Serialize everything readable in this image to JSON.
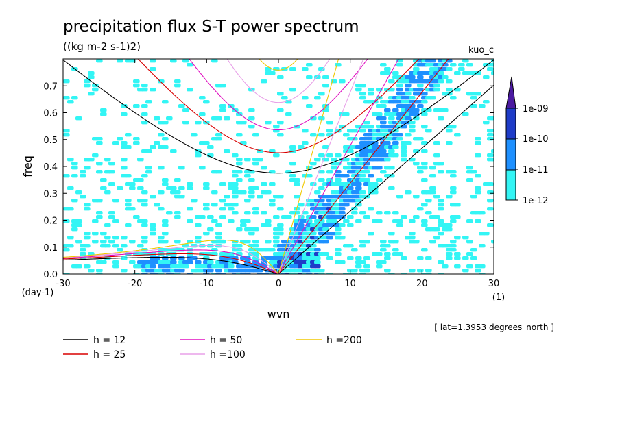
{
  "chart_data": {
    "type": "heatmap",
    "title": "precipitation flux S-T power spectrum",
    "subtitle": "((kg m-2 s-1)2)",
    "tag": "kuo_c",
    "xlabel": "wvn",
    "xunit": "(1)",
    "ylabel": "freq",
    "yunit": "(day-1)",
    "xlim": [
      -30,
      30
    ],
    "ylim": [
      0,
      0.8
    ],
    "x_ticks": [
      -30,
      -20,
      -10,
      0,
      10,
      20,
      30
    ],
    "x_tick_labels": [
      "-30",
      "-20",
      "-10",
      "0",
      "10",
      "20",
      "30"
    ],
    "y_ticks": [
      0,
      0.1,
      0.2,
      0.3,
      0.4,
      0.5,
      0.6,
      0.7
    ],
    "y_tick_labels": [
      "0.0",
      "0.1",
      "0.2",
      "0.3",
      "0.4",
      "0.5",
      "0.6",
      "0.7"
    ],
    "note": "[ lat=1.3953 degrees_north ]",
    "colorbar": {
      "levels": [
        "1e-12",
        "1e-11",
        "1e-10",
        "1e-09"
      ],
      "colors": [
        "#33f5f5",
        "#1e90ff",
        "#1e3cc8",
        "#4b1aa0"
      ]
    },
    "dispersion_curves": [
      {
        "name": "h = 12",
        "color": "#000000"
      },
      {
        "name": "h = 25",
        "color": "#d80000"
      },
      {
        "name": "h = 50",
        "color": "#e010c0"
      },
      {
        "name": "h =100",
        "color": "#e8a0e8"
      },
      {
        "name": "h =200",
        "color": "#f0c800"
      }
    ]
  }
}
